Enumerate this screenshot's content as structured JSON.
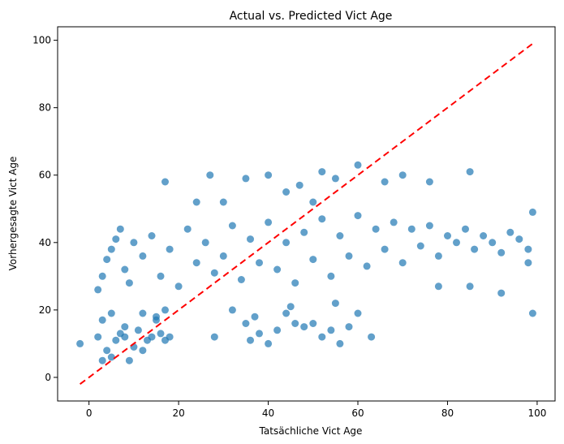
{
  "chart_data": {
    "type": "scatter",
    "title": "Actual vs. Predicted Vict Age",
    "xlabel": "Tatsächliche Vict Age",
    "ylabel": "Vorhergesagte Vict Age",
    "xlim": [
      -7,
      104
    ],
    "ylim": [
      -7,
      104
    ],
    "x_ticks": [
      0,
      20,
      40,
      60,
      80,
      100
    ],
    "y_ticks": [
      0,
      20,
      40,
      60,
      80,
      100
    ],
    "x_tick_labels": [
      "0",
      "20",
      "40",
      "60",
      "80",
      "100"
    ],
    "y_tick_labels": [
      "0",
      "20",
      "40",
      "60",
      "80",
      "100"
    ],
    "grid": false,
    "point_color": "#1f77b4",
    "point_alpha": 0.7,
    "reference_line": {
      "x": [
        -2,
        99
      ],
      "y": [
        -2,
        99
      ],
      "color": "#ff0000",
      "style": "dashed"
    },
    "points": [
      [
        -2,
        10
      ],
      [
        2,
        12
      ],
      [
        3,
        5
      ],
      [
        4,
        8
      ],
      [
        5,
        6
      ],
      [
        6,
        11
      ],
      [
        7,
        13
      ],
      [
        8,
        12
      ],
      [
        9,
        5
      ],
      [
        10,
        9
      ],
      [
        11,
        14
      ],
      [
        12,
        8
      ],
      [
        13,
        11
      ],
      [
        14,
        12
      ],
      [
        15,
        17
      ],
      [
        16,
        13
      ],
      [
        17,
        11
      ],
      [
        18,
        12
      ],
      [
        3,
        17
      ],
      [
        5,
        19
      ],
      [
        8,
        15
      ],
      [
        12,
        19
      ],
      [
        15,
        18
      ],
      [
        17,
        20
      ],
      [
        2,
        26
      ],
      [
        3,
        30
      ],
      [
        4,
        35
      ],
      [
        5,
        38
      ],
      [
        6,
        41
      ],
      [
        7,
        44
      ],
      [
        8,
        32
      ],
      [
        9,
        28
      ],
      [
        10,
        40
      ],
      [
        12,
        36
      ],
      [
        14,
        42
      ],
      [
        16,
        30
      ],
      [
        18,
        38
      ],
      [
        20,
        27
      ],
      [
        22,
        44
      ],
      [
        24,
        34
      ],
      [
        26,
        40
      ],
      [
        28,
        31
      ],
      [
        30,
        36
      ],
      [
        32,
        45
      ],
      [
        34,
        29
      ],
      [
        36,
        41
      ],
      [
        38,
        34
      ],
      [
        40,
        46
      ],
      [
        42,
        32
      ],
      [
        44,
        40
      ],
      [
        46,
        28
      ],
      [
        48,
        43
      ],
      [
        50,
        35
      ],
      [
        52,
        47
      ],
      [
        54,
        30
      ],
      [
        56,
        42
      ],
      [
        58,
        36
      ],
      [
        60,
        48
      ],
      [
        62,
        33
      ],
      [
        64,
        44
      ],
      [
        66,
        38
      ],
      [
        68,
        46
      ],
      [
        70,
        34
      ],
      [
        72,
        44
      ],
      [
        74,
        39
      ],
      [
        76,
        45
      ],
      [
        78,
        36
      ],
      [
        80,
        42
      ],
      [
        82,
        40
      ],
      [
        84,
        44
      ],
      [
        86,
        38
      ],
      [
        88,
        42
      ],
      [
        90,
        40
      ],
      [
        92,
        37
      ],
      [
        94,
        43
      ],
      [
        96,
        41
      ],
      [
        98,
        38
      ],
      [
        99,
        19
      ],
      [
        99,
        49
      ],
      [
        98,
        34
      ],
      [
        27,
        60
      ],
      [
        35,
        59
      ],
      [
        40,
        60
      ],
      [
        47,
        57
      ],
      [
        52,
        61
      ],
      [
        55,
        59
      ],
      [
        60,
        63
      ],
      [
        66,
        58
      ],
      [
        70,
        60
      ],
      [
        76,
        58
      ],
      [
        85,
        61
      ],
      [
        17,
        58
      ],
      [
        24,
        52
      ],
      [
        30,
        52
      ],
      [
        44,
        55
      ],
      [
        50,
        52
      ],
      [
        28,
        12
      ],
      [
        32,
        20
      ],
      [
        36,
        11
      ],
      [
        38,
        13
      ],
      [
        40,
        10
      ],
      [
        42,
        14
      ],
      [
        44,
        19
      ],
      [
        46,
        16
      ],
      [
        48,
        15
      ],
      [
        50,
        16
      ],
      [
        52,
        12
      ],
      [
        54,
        14
      ],
      [
        56,
        10
      ],
      [
        58,
        15
      ],
      [
        60,
        19
      ],
      [
        63,
        12
      ],
      [
        35,
        16
      ],
      [
        37,
        18
      ],
      [
        45,
        21
      ],
      [
        55,
        22
      ],
      [
        92,
        25
      ],
      [
        85,
        27
      ],
      [
        78,
        27
      ]
    ]
  }
}
